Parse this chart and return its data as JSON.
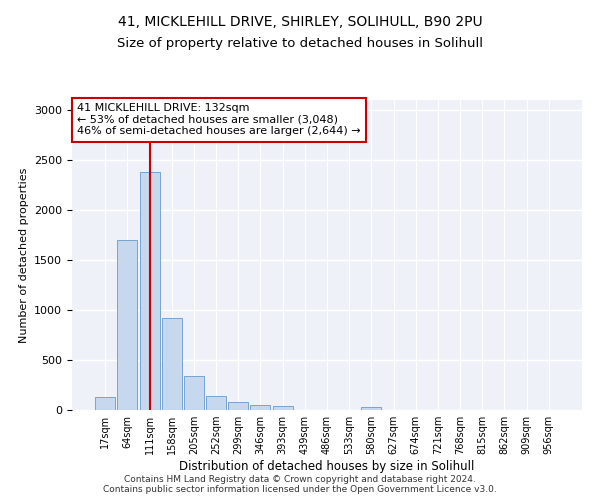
{
  "title1": "41, MICKLEHILL DRIVE, SHIRLEY, SOLIHULL, B90 2PU",
  "title2": "Size of property relative to detached houses in Solihull",
  "xlabel": "Distribution of detached houses by size in Solihull",
  "ylabel": "Number of detached properties",
  "bin_labels": [
    "17sqm",
    "64sqm",
    "111sqm",
    "158sqm",
    "205sqm",
    "252sqm",
    "299sqm",
    "346sqm",
    "393sqm",
    "439sqm",
    "486sqm",
    "533sqm",
    "580sqm",
    "627sqm",
    "674sqm",
    "721sqm",
    "768sqm",
    "815sqm",
    "862sqm",
    "909sqm",
    "956sqm"
  ],
  "bar_values": [
    130,
    1700,
    2380,
    920,
    345,
    145,
    80,
    50,
    40,
    0,
    0,
    0,
    30,
    0,
    0,
    0,
    0,
    0,
    0,
    0,
    0
  ],
  "bar_color": "#c5d8ed",
  "bar_edge_color": "#6699cc",
  "property_bin_index": 2,
  "red_line_color": "#cc0000",
  "annotation_text": "41 MICKLEHILL DRIVE: 132sqm\n← 53% of detached houses are smaller (3,048)\n46% of semi-detached houses are larger (2,644) →",
  "annotation_box_color": "#ffffff",
  "annotation_box_edge_color": "#cc0000",
  "ylim": [
    0,
    3100
  ],
  "yticks": [
    0,
    500,
    1000,
    1500,
    2000,
    2500,
    3000
  ],
  "background_color": "#eef2f8",
  "footer1": "Contains HM Land Registry data © Crown copyright and database right 2024.",
  "footer2": "Contains public sector information licensed under the Open Government Licence v3.0.",
  "title1_fontsize": 10,
  "title2_fontsize": 9.5
}
